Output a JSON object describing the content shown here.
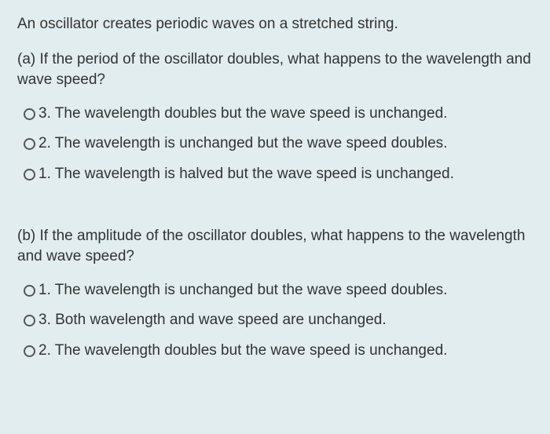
{
  "background_color": "#e2edef",
  "text_color": "#333333",
  "font_size_pt": 14,
  "intro": "An oscillator creates periodic waves on a stretched string.",
  "parts": [
    {
      "stem": "(a) If the period of the oscillator doubles, what happens to the wavelength and wave speed?",
      "options": [
        "3. The wavelength doubles but the wave speed is unchanged.",
        "2. The wavelength is unchanged but the wave speed doubles.",
        "1. The wavelength is halved but the wave speed is unchanged."
      ]
    },
    {
      "stem": "(b) If the amplitude of the oscillator doubles, what happens to the wavelength and wave speed?",
      "options": [
        "1. The wavelength is unchanged but the wave speed doubles.",
        "3. Both wavelength and wave speed are unchanged.",
        "2. The wavelength doubles but the wave speed is unchanged."
      ]
    }
  ]
}
